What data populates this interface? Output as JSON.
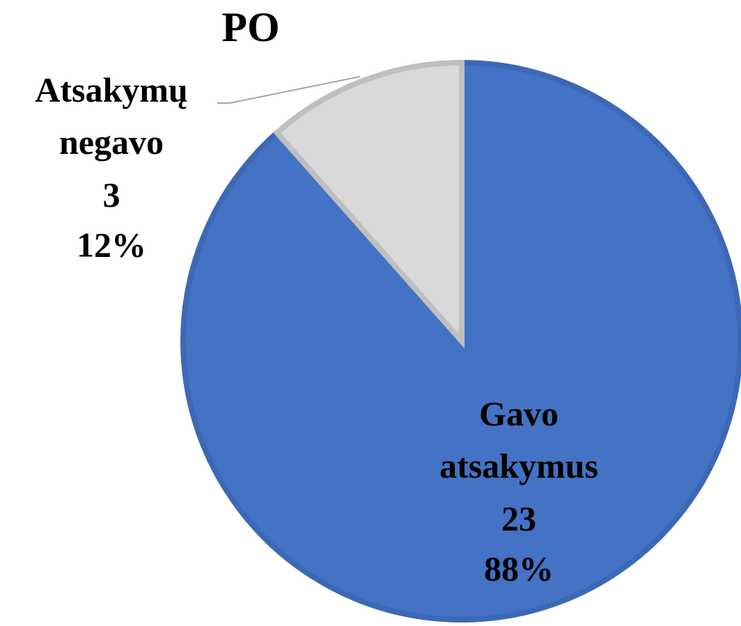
{
  "chart_data": {
    "type": "pie",
    "title": "PO",
    "categories": [
      "Gavo atsakymus",
      "Atsakymų negavo"
    ],
    "values": [
      23,
      3
    ],
    "percents": [
      88,
      12
    ],
    "percent_labels": [
      "88%",
      "12%"
    ],
    "colors": [
      "#4472c4",
      "#d9d9d9"
    ]
  }
}
